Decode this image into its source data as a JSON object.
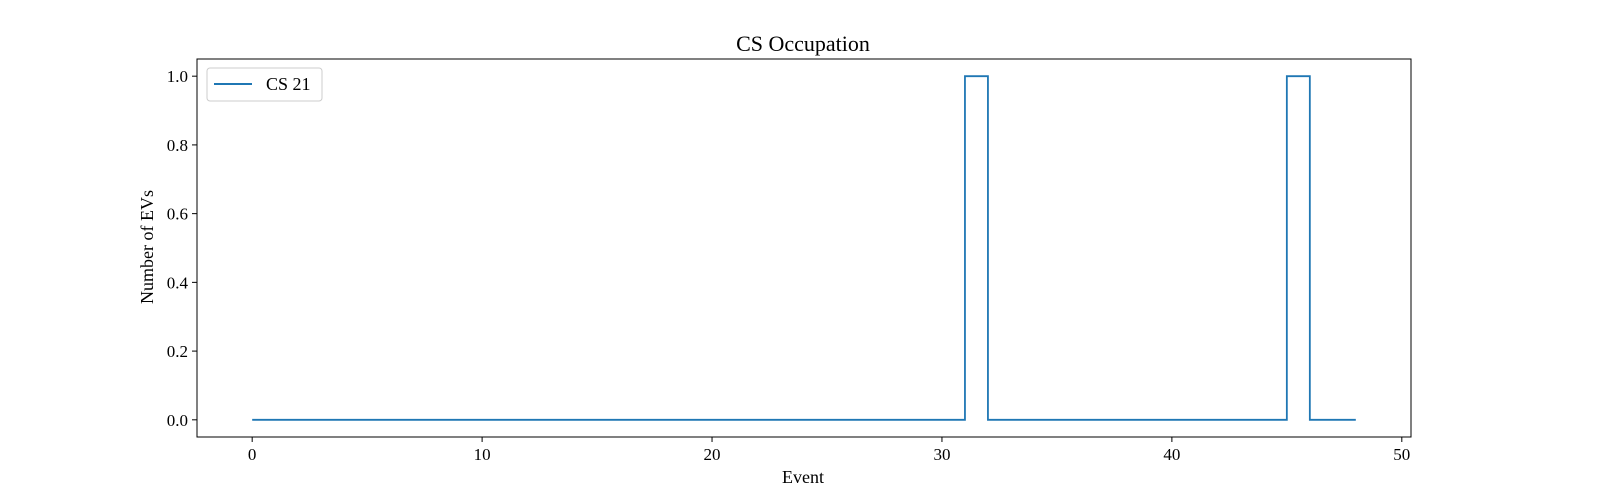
{
  "chart_data": {
    "type": "line",
    "title": "CS Occupation",
    "xlabel": "Event",
    "ylabel": "Number of EVs",
    "xlim": [
      -2.4,
      50.4
    ],
    "ylim": [
      -0.05,
      1.05
    ],
    "xticks": [
      0,
      10,
      20,
      30,
      40,
      50
    ],
    "xtick_labels": [
      "0",
      "10",
      "20",
      "30",
      "40",
      "50"
    ],
    "yticks": [
      0.0,
      0.2,
      0.4,
      0.6,
      0.8,
      1.0
    ],
    "ytick_labels": [
      "0.0",
      "0.2",
      "0.4",
      "0.6",
      "0.8",
      "1.0"
    ],
    "grid": false,
    "legend_position": "upper-left",
    "step": "post",
    "series": [
      {
        "name": "CS 21",
        "color": "#1f77b4",
        "x": [
          0,
          1,
          2,
          3,
          4,
          5,
          6,
          7,
          8,
          9,
          10,
          11,
          12,
          13,
          14,
          15,
          16,
          17,
          18,
          19,
          20,
          21,
          22,
          23,
          24,
          25,
          26,
          27,
          28,
          29,
          30,
          31,
          32,
          33,
          34,
          35,
          36,
          37,
          38,
          39,
          40,
          41,
          42,
          43,
          44,
          45,
          46,
          47,
          48
        ],
        "y": [
          0,
          0,
          0,
          0,
          0,
          0,
          0,
          0,
          0,
          0,
          0,
          0,
          0,
          0,
          0,
          0,
          0,
          0,
          0,
          0,
          0,
          0,
          0,
          0,
          0,
          0,
          0,
          0,
          0,
          0,
          0,
          1,
          0,
          0,
          0,
          0,
          0,
          0,
          0,
          0,
          0,
          0,
          0,
          0,
          0,
          1,
          0,
          0,
          0
        ]
      }
    ]
  }
}
